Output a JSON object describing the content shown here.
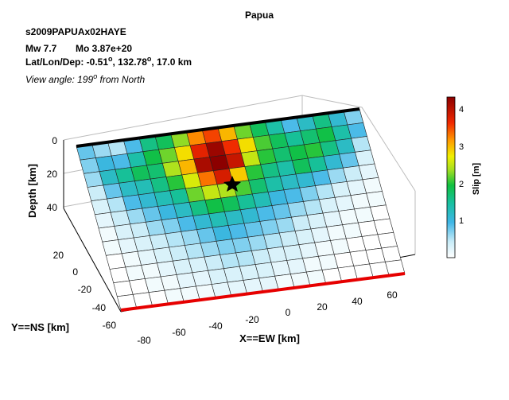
{
  "chart_data": {
    "type": "heatmap",
    "title": "Papua",
    "event_id": "s2009PAPUAx02HAYE",
    "magnitude": "Mw 7.7",
    "moment": "Mo 3.87e+20",
    "location_prefix": "Lat/Lon/Dep: -0.51",
    "location_mid": ", 132.78",
    "location_suffix": ", 17.0 km",
    "degree_symbol": "o",
    "view_prefix": "View angle: 199",
    "view_suffix": " from North",
    "xlabel": "X==EW [km]",
    "ylabel": "Y==NS [km]",
    "zlabel": "Depth [km]",
    "colorbar_label": "Slip [m]",
    "x_ticks": [
      "-80",
      "-60",
      "-40",
      "-20",
      "0",
      "20",
      "40",
      "60"
    ],
    "y_ticks": [
      "-60",
      "-40",
      "-20",
      "0",
      "20"
    ],
    "z_ticks": [
      "0",
      "20",
      "40"
    ],
    "colorbar_ticks": [
      "1",
      "2",
      "3",
      "4"
    ],
    "colorbar_range": [
      0,
      4.3
    ],
    "colors": {
      "hypocenter": "#000000",
      "top_edge": "#000000",
      "bottom_edge": "#e60000"
    },
    "grid_rows": 12,
    "grid_cols": 18,
    "slip": [
      [
        0.8,
        0.6,
        0.5,
        0.9,
        1.6,
        1.8,
        2.3,
        3.2,
        3.5,
        3.0,
        2.2,
        1.8,
        1.4,
        0.9,
        1.2,
        1.6,
        1.1,
        0.7
      ],
      [
        0.7,
        1.0,
        0.9,
        1.4,
        1.9,
        2.2,
        2.8,
        3.7,
        4.2,
        3.6,
        2.8,
        2.1,
        1.8,
        1.5,
        1.7,
        1.9,
        1.4,
        0.9
      ],
      [
        0.6,
        1.2,
        1.5,
        1.8,
        1.7,
        2.4,
        3.0,
        4.1,
        4.3,
        3.9,
        2.5,
        2.0,
        1.7,
        1.9,
        2.0,
        1.6,
        1.2,
        0.5
      ],
      [
        0.4,
        0.8,
        1.2,
        1.3,
        1.6,
        2.0,
        2.6,
        3.3,
        3.8,
        2.9,
        2.0,
        1.6,
        1.4,
        1.8,
        1.5,
        1.1,
        0.8,
        0.3
      ],
      [
        0.3,
        0.5,
        0.9,
        1.1,
        1.3,
        1.5,
        2.2,
        2.5,
        2.4,
        2.1,
        1.7,
        1.4,
        1.2,
        1.1,
        0.9,
        0.6,
        0.4,
        0.2
      ],
      [
        0.2,
        0.4,
        0.6,
        0.8,
        1.0,
        1.2,
        1.6,
        1.9,
        1.8,
        1.5,
        1.3,
        1.0,
        0.9,
        0.7,
        0.5,
        0.3,
        0.2,
        0.1
      ],
      [
        0.1,
        0.3,
        0.4,
        0.6,
        0.7,
        0.9,
        1.1,
        1.3,
        1.2,
        1.1,
        0.9,
        0.8,
        0.6,
        0.5,
        0.3,
        0.2,
        0.1,
        0.1
      ],
      [
        0.1,
        0.2,
        0.3,
        0.4,
        0.5,
        0.6,
        0.8,
        1.0,
        0.9,
        0.8,
        0.7,
        0.6,
        0.4,
        0.3,
        0.2,
        0.1,
        0.1,
        0.0
      ],
      [
        0.0,
        0.1,
        0.2,
        0.3,
        0.4,
        0.5,
        0.6,
        0.7,
        0.7,
        0.6,
        0.5,
        0.4,
        0.3,
        0.2,
        0.1,
        0.1,
        0.0,
        0.0
      ],
      [
        0.0,
        0.1,
        0.1,
        0.2,
        0.3,
        0.3,
        0.4,
        0.5,
        0.5,
        0.4,
        0.3,
        0.3,
        0.2,
        0.1,
        0.1,
        0.0,
        0.0,
        0.0
      ],
      [
        0.0,
        0.0,
        0.1,
        0.1,
        0.2,
        0.2,
        0.3,
        0.3,
        0.3,
        0.3,
        0.2,
        0.2,
        0.1,
        0.1,
        0.0,
        0.0,
        0.0,
        0.0
      ],
      [
        0.0,
        0.0,
        0.0,
        0.1,
        0.1,
        0.1,
        0.2,
        0.2,
        0.2,
        0.2,
        0.1,
        0.1,
        0.1,
        0.0,
        0.0,
        0.0,
        0.0,
        0.0
      ]
    ]
  }
}
